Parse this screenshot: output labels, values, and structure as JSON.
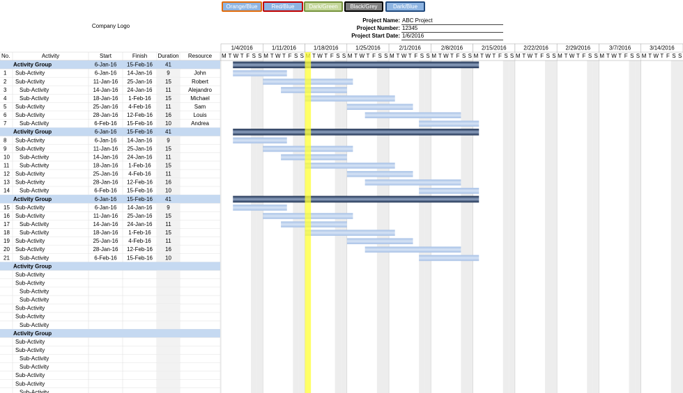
{
  "themes": [
    "Orange/Blue",
    "Red/Blue",
    "Dark/Green",
    "Black/Grey",
    "Dark/Blue"
  ],
  "company_logo": "Company Logo",
  "project": [
    {
      "label": "Project Name:",
      "value": "ABC Project"
    },
    {
      "label": "Project Number:",
      "value": "12345"
    },
    {
      "label": "Project Start Date:",
      "value": "1/6/2016"
    }
  ],
  "table": {
    "columns": [
      "No.",
      "Activity",
      "Start",
      "Finish",
      "Duration",
      "Resource"
    ],
    "rows": [
      {
        "activity": "Activity Group",
        "start": "6-Jan-16",
        "finish": "15-Feb-16",
        "duration": 41
      },
      {
        "no": 1,
        "activity": "Sub-Activity",
        "start": "6-Jan-16",
        "finish": "14-Jan-16",
        "duration": 9,
        "resource": "John"
      },
      {
        "no": 2,
        "activity": "Sub-Activity",
        "start": "11-Jan-16",
        "finish": "25-Jan-16",
        "duration": 15,
        "resource": "Robert"
      },
      {
        "no": 3,
        "activity": "Sub-Activity",
        "start": "14-Jan-16",
        "finish": "24-Jan-16",
        "duration": 11,
        "resource": "Alejandro"
      },
      {
        "no": 4,
        "activity": "Sub-Activity",
        "start": "18-Jan-16",
        "finish": "1-Feb-16",
        "duration": 15,
        "resource": "Michael"
      },
      {
        "no": 5,
        "activity": "Sub-Activity",
        "start": "25-Jan-16",
        "finish": "4-Feb-16",
        "duration": 11,
        "resource": "Sam"
      },
      {
        "no": 6,
        "activity": "Sub-Activity",
        "start": "28-Jan-16",
        "finish": "12-Feb-16",
        "duration": 16,
        "resource": "Louis"
      },
      {
        "no": 7,
        "activity": "Sub-Activity",
        "start": "6-Feb-16",
        "finish": "15-Feb-16",
        "duration": 10,
        "resource": "Andrea"
      },
      {
        "activity": "Activity Group",
        "start": "6-Jan-16",
        "finish": "15-Feb-16",
        "duration": 41
      },
      {
        "no": 8,
        "activity": "Sub-Activity",
        "start": "6-Jan-16",
        "finish": "14-Jan-16",
        "duration": 9
      },
      {
        "no": 9,
        "activity": "Sub-Activity",
        "start": "11-Jan-16",
        "finish": "25-Jan-16",
        "duration": 15
      },
      {
        "no": 10,
        "activity": "Sub-Activity",
        "start": "14-Jan-16",
        "finish": "24-Jan-16",
        "duration": 11
      },
      {
        "no": 11,
        "activity": "Sub-Activity",
        "start": "18-Jan-16",
        "finish": "1-Feb-16",
        "duration": 15
      },
      {
        "no": 12,
        "activity": "Sub-Activity",
        "start": "25-Jan-16",
        "finish": "4-Feb-16",
        "duration": 11
      },
      {
        "no": 13,
        "activity": "Sub-Activity",
        "start": "28-Jan-16",
        "finish": "12-Feb-16",
        "duration": 16
      },
      {
        "no": 14,
        "activity": "Sub-Activity",
        "start": "6-Feb-16",
        "finish": "15-Feb-16",
        "duration": 10
      },
      {
        "activity": "Activity Group",
        "start": "6-Jan-16",
        "finish": "15-Feb-16",
        "duration": 41
      },
      {
        "no": 15,
        "activity": "Sub-Activity",
        "start": "6-Jan-16",
        "finish": "14-Jan-16",
        "duration": 9
      },
      {
        "no": 16,
        "activity": "Sub-Activity",
        "start": "11-Jan-16",
        "finish": "25-Jan-16",
        "duration": 15
      },
      {
        "no": 17,
        "activity": "Sub-Activity",
        "start": "14-Jan-16",
        "finish": "24-Jan-16",
        "duration": 11
      },
      {
        "no": 18,
        "activity": "Sub-Activity",
        "start": "18-Jan-16",
        "finish": "1-Feb-16",
        "duration": 15
      },
      {
        "no": 19,
        "activity": "Sub-Activity",
        "start": "25-Jan-16",
        "finish": "4-Feb-16",
        "duration": 11
      },
      {
        "no": 20,
        "activity": "Sub-Activity",
        "start": "28-Jan-16",
        "finish": "12-Feb-16",
        "duration": 16
      },
      {
        "no": 21,
        "activity": "Sub-Activity",
        "start": "6-Feb-16",
        "finish": "15-Feb-16",
        "duration": 10
      },
      {
        "activity": "Activity Group"
      },
      {
        "activity": "Sub-Activity"
      },
      {
        "activity": "Sub-Activity"
      },
      {
        "activity": "Sub-Activity"
      },
      {
        "activity": "Sub-Activity"
      },
      {
        "activity": "Sub-Activity"
      },
      {
        "activity": "Sub-Activity"
      },
      {
        "activity": "Sub-Activity"
      },
      {
        "activity": "Activity Group"
      },
      {
        "activity": "Sub-Activity"
      },
      {
        "activity": "Sub-Activity"
      },
      {
        "activity": "Sub-Activity"
      },
      {
        "activity": "Sub-Activity"
      },
      {
        "activity": "Sub-Activity"
      },
      {
        "activity": "Sub-Activity"
      },
      {
        "activity": "Sub-Activity"
      }
    ]
  },
  "timeline": {
    "weeks": [
      "1/4/2016",
      "1/11/2016",
      "1/18/2016",
      "1/25/2016",
      "2/1/2016",
      "2/8/2016",
      "2/15/2016",
      "2/22/2016",
      "2/29/2016",
      "3/7/2016",
      "3/14/2016"
    ],
    "day_letters": [
      "M",
      "T",
      "W",
      "T",
      "F",
      "S",
      "S"
    ]
  }
}
